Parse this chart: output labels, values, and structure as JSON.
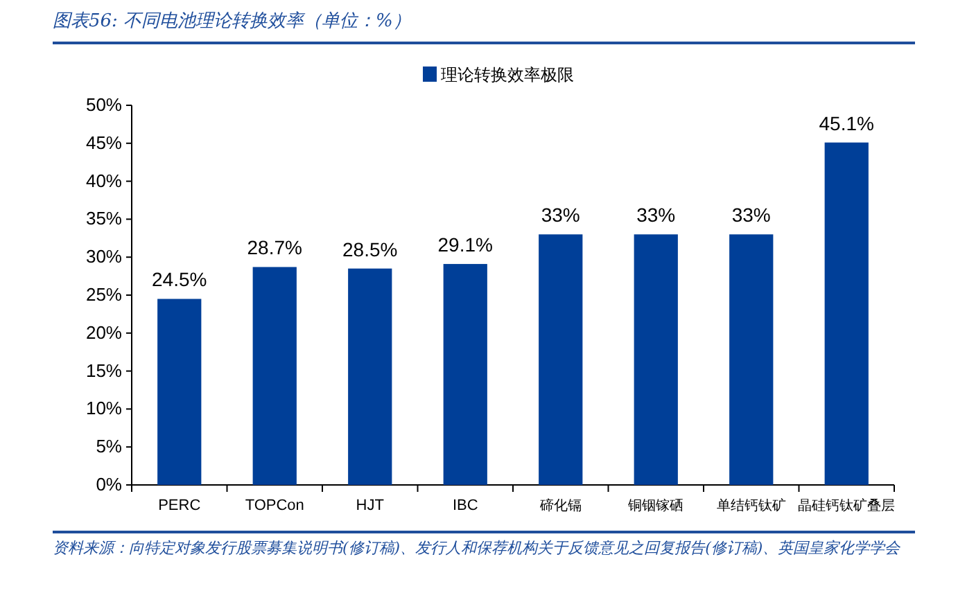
{
  "chart_data": {
    "type": "bar",
    "title": "图表56: 不同电池理论转换效率（单位：%）",
    "categories": [
      "PERC",
      "TOPCon",
      "HJT",
      "IBC",
      "碲化镉",
      "铜铟镓硒",
      "单结钙钛矿",
      "晶硅钙钛矿叠层"
    ],
    "series": [
      {
        "name": "理论转换效率极限",
        "color": "#003f98",
        "values": [
          24.5,
          28.7,
          28.5,
          29.1,
          33,
          33,
          33,
          45.1
        ],
        "value_labels": [
          "24.5%",
          "28.7%",
          "28.5%",
          "29.1%",
          "33%",
          "33%",
          "33%",
          "45.1%"
        ]
      }
    ],
    "ylim": [
      0,
      50
    ],
    "yticks": [
      {
        "value": 0,
        "label": "0%"
      },
      {
        "value": 5,
        "label": "5%"
      },
      {
        "value": 10,
        "label": "10%"
      },
      {
        "value": 15,
        "label": "15%"
      },
      {
        "value": 20,
        "label": "20%"
      },
      {
        "value": 25,
        "label": "25%"
      },
      {
        "value": 30,
        "label": "30%"
      },
      {
        "value": 35,
        "label": "35%"
      },
      {
        "value": 40,
        "label": "40%"
      },
      {
        "value": 45,
        "label": "45%"
      },
      {
        "value": 50,
        "label": "50%"
      }
    ],
    "grid": false,
    "legend": "top",
    "annotations": [
      "资料来源：向特定对象发行股票募集说明书(修订稿)、发行人和保荐机构关于反馈意见之回复报告(修订稿)、英国皇家化学学会"
    ]
  }
}
